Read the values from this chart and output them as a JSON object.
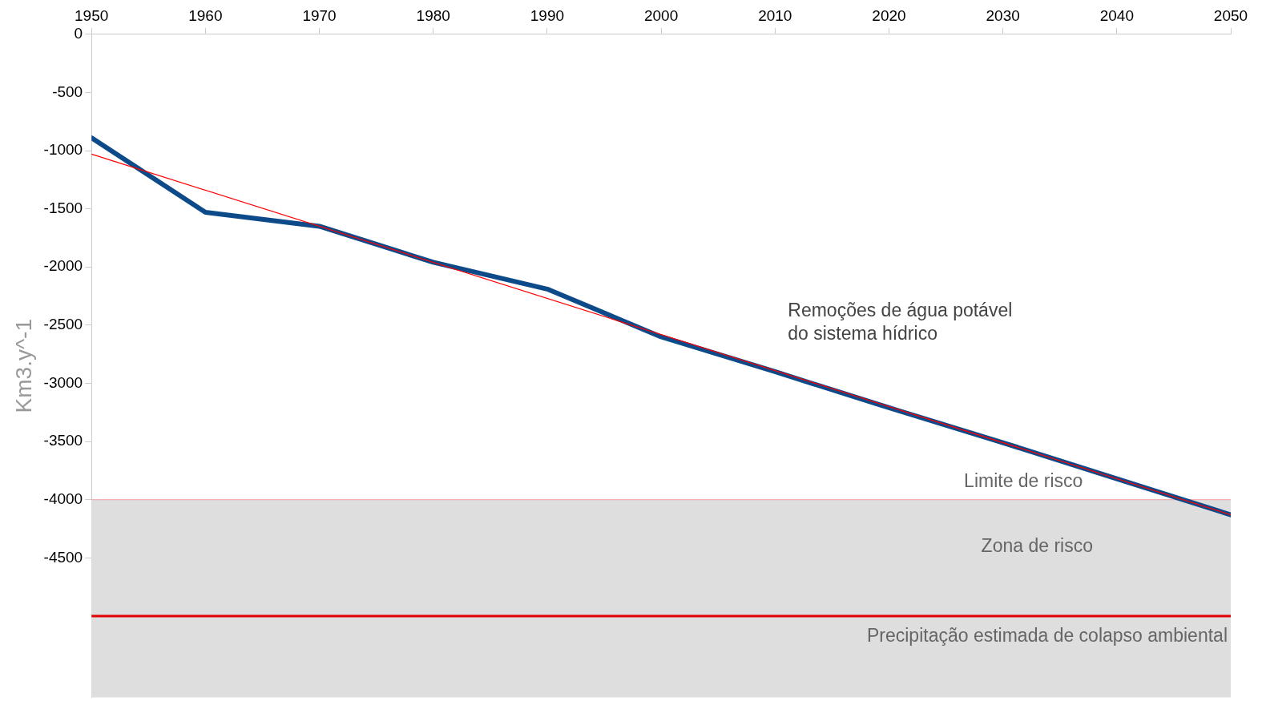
{
  "chart_data": {
    "type": "line",
    "ylabel": "Km3.y^-1",
    "x": [
      1950,
      1960,
      1970,
      1980,
      1990,
      2000,
      2010,
      2020,
      2030,
      2040,
      2050
    ],
    "series": [
      {
        "name": "Remoções de água potável do sistema hídrico",
        "color": "#0d4a8a",
        "values": [
          -890,
          -1530,
          -1650,
          -1960,
          -2190,
          -2600,
          -2900,
          -3210,
          -3510,
          -3820,
          -4130
        ]
      },
      {
        "type": "line",
        "color": "#ff0000",
        "x": [
          1950,
          2050
        ],
        "values": [
          -1030,
          -4130
        ]
      }
    ],
    "xlim": [
      1950,
      2050
    ],
    "xticks": [
      1950,
      1960,
      1970,
      1980,
      1990,
      2000,
      2010,
      2020,
      2030,
      2040,
      2050
    ],
    "ylim": [
      -5700,
      0
    ],
    "yticks": [
      0,
      -500,
      -1000,
      -1500,
      -2000,
      -2500,
      -3000,
      -3500,
      -4000,
      -4500
    ],
    "ref_lines": [
      {
        "axis": "y",
        "value": -4000,
        "label": "Limite de risco",
        "color": "#f4a0a0"
      },
      {
        "axis": "y",
        "value": -5000,
        "label": "Precipitação estimada de colapso ambiental",
        "color": "#e00000"
      }
    ],
    "bands": [
      {
        "axis": "y",
        "from": -4000,
        "to": -5700,
        "label": "Zona de risco",
        "color": "#dedede"
      }
    ],
    "grid": false,
    "legend": false,
    "marker": "none",
    "line_style": "solid"
  }
}
